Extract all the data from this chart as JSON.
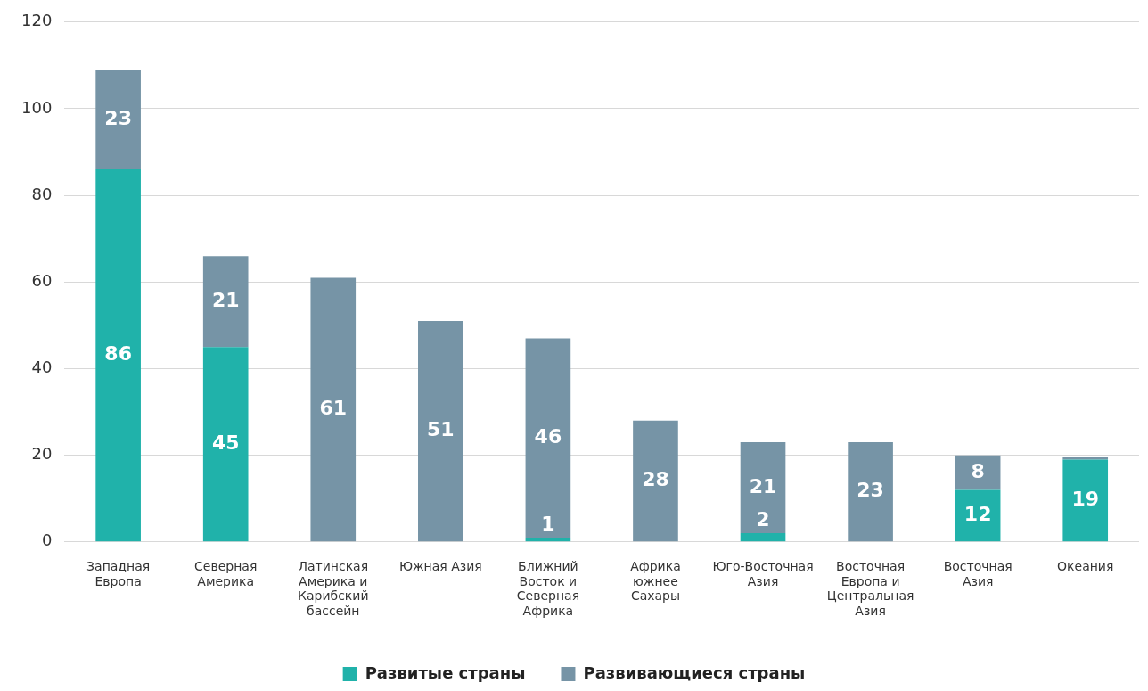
{
  "chart_data": {
    "type": "bar",
    "stacked": true,
    "categories": [
      "Западная Европа",
      "Северная Америка",
      "Латинская Америка и Карибский бассейн",
      "Южная Азия",
      "Ближний Восток и Северная Африка",
      "Африка южнее Сахары",
      "Юго-Восточная Азия",
      "Восточная Европа и Центральная Азия",
      "Восточная Азия",
      "Океания"
    ],
    "series": [
      {
        "name": "Развитые страны",
        "color": "#20b2aa",
        "values": [
          86,
          45,
          0,
          0,
          1,
          0,
          2,
          0,
          12,
          19
        ],
        "value_labels": [
          "86",
          "45",
          null,
          null,
          "1",
          null,
          "2",
          null,
          "12",
          "19"
        ]
      },
      {
        "name": "Развивающиеся страны",
        "color": "#7694a6",
        "values": [
          23,
          21,
          61,
          51,
          46,
          28,
          21,
          23,
          8,
          0.5
        ],
        "value_labels": [
          "23",
          "21",
          "61",
          "51",
          "46",
          "28",
          "21",
          "23",
          "8",
          null
        ]
      }
    ],
    "ylim": [
      0,
      120
    ],
    "yticks": [
      0,
      20,
      40,
      60,
      80,
      100,
      120
    ],
    "grid": "y",
    "legend": "bottom"
  }
}
